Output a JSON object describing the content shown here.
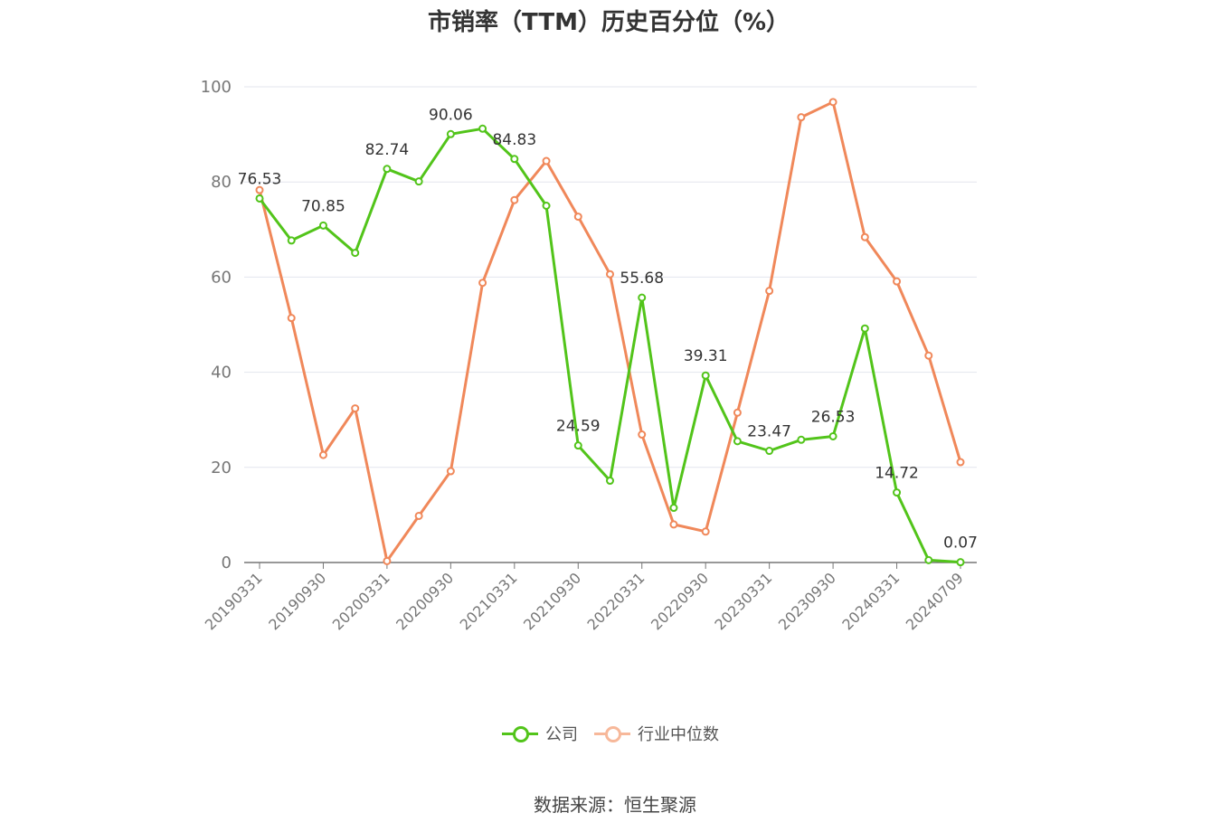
{
  "chart_data": {
    "type": "line",
    "title": "市销率（TTM）历史百分位（%）",
    "ylim": [
      0,
      100
    ],
    "yticks": [
      0,
      20,
      40,
      60,
      80,
      100
    ],
    "grid": true,
    "legend_placement": "bottom-center",
    "categories": [
      "20190331",
      "20190630",
      "20190930",
      "20191231",
      "20200331",
      "20200630",
      "20200930",
      "20201231",
      "20210331",
      "20210630",
      "20210930",
      "20211231",
      "20220331",
      "20220630",
      "20220930",
      "20221231",
      "20230331",
      "20230630",
      "20230930",
      "20231231",
      "20240331",
      "20240630",
      "20240709"
    ],
    "tick_labels": [
      "20190331",
      "20190930",
      "20200331",
      "20200930",
      "20210331",
      "20210930",
      "20220331",
      "20220930",
      "20230331",
      "20230930",
      "20240331",
      "20240709"
    ],
    "series": [
      {
        "name": "公司",
        "color": "#52c41a",
        "values": [
          76.53,
          67.7,
          70.85,
          65.1,
          82.74,
          80.1,
          90.06,
          91.2,
          84.83,
          75.0,
          24.59,
          17.2,
          55.68,
          11.5,
          39.31,
          25.5,
          23.47,
          25.8,
          26.53,
          49.2,
          14.72,
          0.5,
          0.07
        ],
        "data_labels": {
          "0": "76.53",
          "2": "70.85",
          "4": "82.74",
          "6": "90.06",
          "8": "84.83",
          "10": "24.59",
          "12": "55.68",
          "14": "39.31",
          "16": "23.47",
          "18": "26.53",
          "20": "14.72",
          "22": "0.07"
        }
      },
      {
        "name": "行业中位数",
        "color": "#f0885a",
        "values": [
          78.3,
          51.4,
          22.6,
          32.4,
          0.3,
          9.8,
          19.2,
          58.8,
          76.2,
          84.4,
          72.7,
          60.6,
          26.9,
          8.0,
          6.5,
          31.5,
          57.1,
          93.6,
          96.8,
          68.4,
          59.1,
          43.5,
          21.1
        ]
      }
    ]
  },
  "source_text": "数据来源：恒生聚源"
}
